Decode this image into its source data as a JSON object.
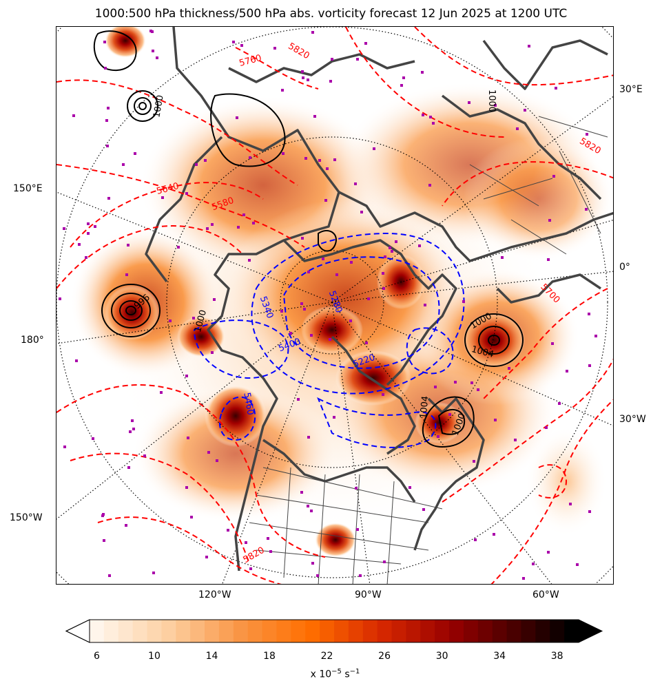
{
  "title": "1000:500 hPa thickness/500 hPa abs. vorticity forecast 12 Jun 2025 at 1200 UTC",
  "map": {
    "longitude_labels": {
      "lon_30e": "30°E",
      "lon_150e": "150°E",
      "lon_0": "0°",
      "lon_180": "180°",
      "lon_30w": "30°W",
      "lon_150w": "150°W",
      "lon_120w": "120°W",
      "lon_90w": "90°W",
      "lon_60w": "60°W"
    },
    "pressure_labels": [
      "1000",
      "1000",
      "1004",
      "1004",
      "1000",
      "1000",
      "1000",
      "996",
      "1000"
    ],
    "thickness_red_labels": [
      "5760",
      "5820",
      "5820",
      "5640",
      "5580",
      "5700",
      "5820"
    ],
    "thickness_blue_labels": [
      "5340",
      "5400",
      "5280",
      "5220",
      "5460"
    ],
    "colors": {
      "vorticity_light": "#fde7d1",
      "vorticity_mid": "#f98a2a",
      "vorticity_dark": "#7a0000",
      "thickness_warm": "#ff0000",
      "thickness_cold": "#0000ff",
      "mslp": "#000000",
      "coastline": "#444444",
      "station_marker": "#aa00aa"
    }
  },
  "colorbar": {
    "ticks": [
      "6",
      "10",
      "14",
      "18",
      "22",
      "26",
      "30",
      "34",
      "38"
    ],
    "min": 6,
    "max": 40,
    "step": 1,
    "units_prefix": "x 10",
    "units_exp": "−5",
    "units_suffix": " s",
    "units_exp2": "−1",
    "extend": "both"
  }
}
